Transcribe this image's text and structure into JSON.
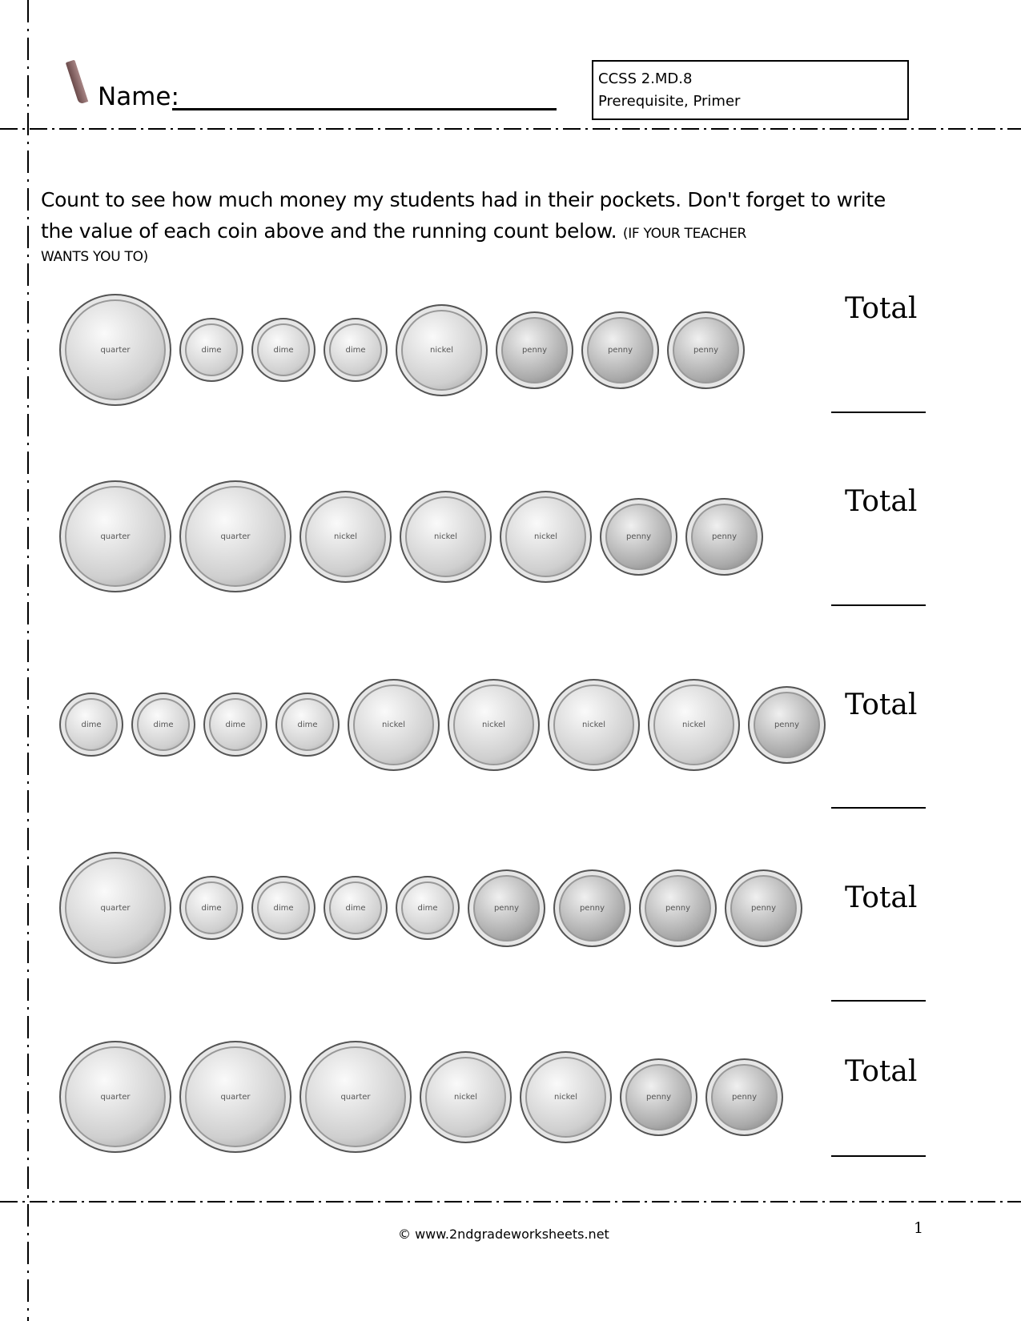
{
  "header": {
    "name_label": "Name:",
    "standard_code": "CCSS  2.MD.8",
    "standard_level": "Prerequisite, Primer"
  },
  "instructions": {
    "main": "Count to see how much money my students had in their pockets.  Don't forget to write the value of each coin above and the running count below.",
    "note": "(IF YOUR TEACHER",
    "note_cont": "WANTS YOU TO)"
  },
  "total_label": "Total",
  "rows": [
    {
      "coins": [
        "quarter",
        "dime",
        "dime",
        "dime",
        "nickel",
        "penny",
        "penny",
        "penny"
      ]
    },
    {
      "coins": [
        "quarter",
        "quarter",
        "nickel",
        "nickel",
        "nickel",
        "penny",
        "penny"
      ]
    },
    {
      "coins": [
        "dime",
        "dime",
        "dime",
        "dime",
        "nickel",
        "nickel",
        "nickel",
        "nickel",
        "penny"
      ]
    },
    {
      "coins": [
        "quarter",
        "dime",
        "dime",
        "dime",
        "dime",
        "penny",
        "penny",
        "penny",
        "penny"
      ]
    },
    {
      "coins": [
        "quarter",
        "quarter",
        "quarter",
        "nickel",
        "nickel",
        "penny",
        "penny"
      ]
    }
  ],
  "footer": {
    "copyright": "© www.2ndgradeworksheets.net",
    "page_number": "1"
  }
}
